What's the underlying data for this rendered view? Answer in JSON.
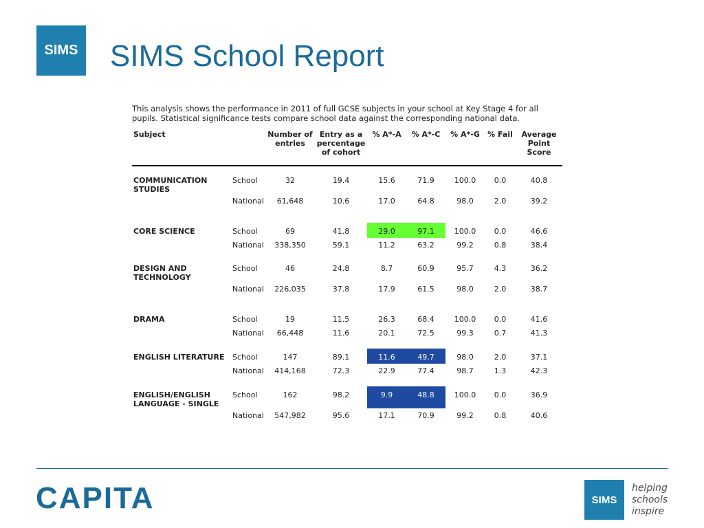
{
  "header": {
    "logo_text": "SIMS",
    "title": "SIMS School Report"
  },
  "intro": "This analysis shows the performance in 2011 of full GCSE subjects in your school at Key Stage 4 for all pupils. Statistical significance tests compare school data against the corresponding national data.",
  "table": {
    "headers": {
      "subject": "Subject",
      "entries": "Number of entries",
      "entry_pct": "Entry as a percentage of cohort",
      "a_star_a": "% A*-A",
      "a_star_c": "% A*-C",
      "a_star_g": "% A*-G",
      "fail": "% Fail",
      "aps": "Average Point Score"
    },
    "rows": [
      {
        "subject": "COMMUNICATION STUDIES",
        "school": {
          "label": "School",
          "entries": "32",
          "entry_pct": "19.4",
          "a_star_a": "15.6",
          "a_star_c": "71.9",
          "a_star_g": "100.0",
          "fail": "0.0",
          "aps": "40.8"
        },
        "national": {
          "label": "National",
          "entries": "61,648",
          "entry_pct": "10.6",
          "a_star_a": "17.0",
          "a_star_c": "64.8",
          "a_star_g": "98.0",
          "fail": "2.0",
          "aps": "39.2"
        }
      },
      {
        "subject": "CORE SCIENCE",
        "school": {
          "label": "School",
          "entries": "69",
          "entry_pct": "41.8",
          "a_star_a": "29.0",
          "a_star_c": "97.1",
          "a_star_g": "100.0",
          "fail": "0.0",
          "aps": "46.6"
        },
        "national": {
          "label": "National",
          "entries": "338,350",
          "entry_pct": "59.1",
          "a_star_a": "11.2",
          "a_star_c": "63.2",
          "a_star_g": "99.2",
          "fail": "0.8",
          "aps": "38.4"
        }
      },
      {
        "subject": "DESIGN AND TECHNOLOGY",
        "school": {
          "label": "School",
          "entries": "46",
          "entry_pct": "24.8",
          "a_star_a": "8.7",
          "a_star_c": "60.9",
          "a_star_g": "95.7",
          "fail": "4.3",
          "aps": "36.2"
        },
        "national": {
          "label": "National",
          "entries": "226,035",
          "entry_pct": "37.8",
          "a_star_a": "17.9",
          "a_star_c": "61.5",
          "a_star_g": "98.0",
          "fail": "2.0",
          "aps": "38.7"
        }
      },
      {
        "subject": "DRAMA",
        "school": {
          "label": "School",
          "entries": "19",
          "entry_pct": "11.5",
          "a_star_a": "26.3",
          "a_star_c": "68.4",
          "a_star_g": "100.0",
          "fail": "0.0",
          "aps": "41.6"
        },
        "national": {
          "label": "National",
          "entries": "66,448",
          "entry_pct": "11.6",
          "a_star_a": "20.1",
          "a_star_c": "72.5",
          "a_star_g": "99.3",
          "fail": "0.7",
          "aps": "41.3"
        }
      },
      {
        "subject": "ENGLISH LITERATURE",
        "school": {
          "label": "School",
          "entries": "147",
          "entry_pct": "89.1",
          "a_star_a": "11.6",
          "a_star_c": "49.7",
          "a_star_g": "98.0",
          "fail": "2.0",
          "aps": "37.1"
        },
        "national": {
          "label": "National",
          "entries": "414,168",
          "entry_pct": "72.3",
          "a_star_a": "22.9",
          "a_star_c": "77.4",
          "a_star_g": "98.7",
          "fail": "1.3",
          "aps": "42.3"
        }
      },
      {
        "subject": "ENGLISH/ENGLISH LANGUAGE - SINGLE",
        "school": {
          "label": "School",
          "entries": "162",
          "entry_pct": "98.2",
          "a_star_a": "9.9",
          "a_star_c": "48.8",
          "a_star_g": "100.0",
          "fail": "0.0",
          "aps": "36.9"
        },
        "national": {
          "label": "National",
          "entries": "547,982",
          "entry_pct": "95.6",
          "a_star_a": "17.1",
          "a_star_c": "70.9",
          "a_star_g": "99.2",
          "fail": "0.8",
          "aps": "40.6"
        }
      }
    ],
    "highlight_colors": {
      "significantly_above": "#66ff33",
      "significantly_below": "#1f4aa1"
    }
  },
  "footer": {
    "company": "CAPITA",
    "logo_text": "SIMS",
    "tagline_line1": "helping",
    "tagline_line2": "schools",
    "tagline_line3": "inspire"
  }
}
